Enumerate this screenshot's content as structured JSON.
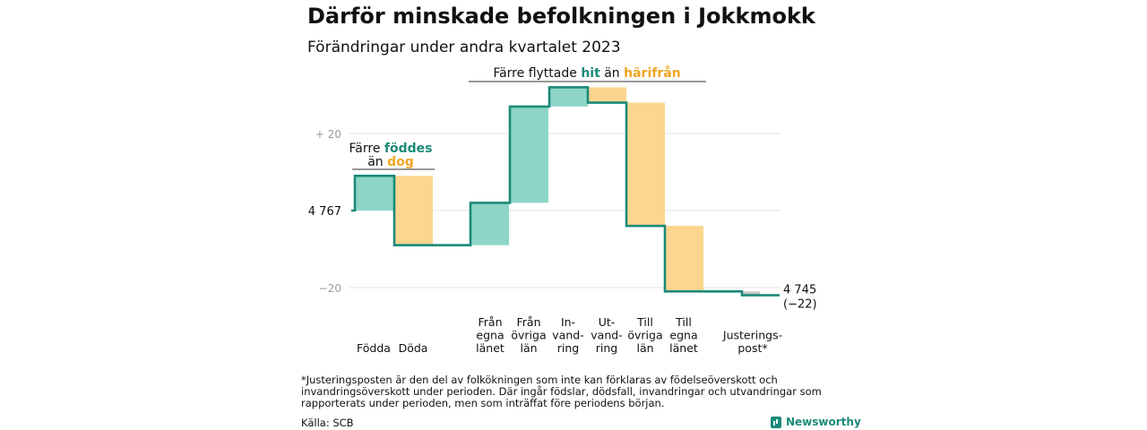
{
  "header": {
    "title": "Därför minskade befolkningen i Jokkmokk",
    "subtitle": "Förändringar under andra kvartalet 2023"
  },
  "chart_data": {
    "type": "waterfall",
    "start_value": 4767,
    "end_value": 4745,
    "end_label": "4 745",
    "end_change_label": "(−22)",
    "baseline_label": "4 767",
    "y_ticks": [
      {
        "value": 20,
        "label": "+  20"
      },
      {
        "value": -20,
        "label": "−20"
      }
    ],
    "ylim": [
      -28,
      40
    ],
    "grid": true,
    "steps": [
      {
        "key": "fodda",
        "label": [
          "Födda"
        ],
        "change": 9,
        "kind": "in"
      },
      {
        "key": "doda",
        "label": [
          "Döda"
        ],
        "change": -18,
        "kind": "out"
      },
      {
        "key": "fran_egna",
        "label": [
          "Från",
          "egna",
          "länet"
        ],
        "change": 11,
        "kind": "in"
      },
      {
        "key": "fran_ovriga",
        "label": [
          "Från",
          "övriga",
          "län"
        ],
        "change": 25,
        "kind": "in"
      },
      {
        "key": "invandring",
        "label": [
          "In-",
          "vand-",
          "ring"
        ],
        "change": 5,
        "kind": "in"
      },
      {
        "key": "utvandring",
        "label": [
          "Ut-",
          "vand-",
          "ring"
        ],
        "change": -4,
        "kind": "out"
      },
      {
        "key": "till_ovriga",
        "label": [
          "Till",
          "övriga",
          "län"
        ],
        "change": -32,
        "kind": "out"
      },
      {
        "key": "till_egna",
        "label": [
          "Till",
          "egna",
          "länet"
        ],
        "change": -17,
        "kind": "out"
      },
      {
        "key": "justering",
        "label": [
          "Justerings-",
          "post*"
        ],
        "change": -1,
        "kind": "adj"
      }
    ],
    "annotations": {
      "births": {
        "line1": "Färre",
        "line1_colored": "föddes",
        "line2": "än",
        "line2_colored": "dog"
      },
      "migration": {
        "text1": "Färre flyttade",
        "colored1": "hit",
        "text2": "än",
        "colored2": "härifrån"
      }
    },
    "colors": {
      "in_fill": "#8ed5c8",
      "out_fill": "#fcd58e",
      "adj_fill": "#c8c8c8",
      "line": "#1a8a78",
      "teal_text": "#1a8a78",
      "orange_text": "#efa521",
      "grid": "#e3e3e3"
    }
  },
  "footer": {
    "footnote": "*Justeringsposten är den del av folkökningen som inte kan förklaras av födelseöverskott och invandringsöverskott under perioden. Där ingår födslar, dödsfall, invandringar och utvandringar som rapporterats under perioden, men som inträffat före periodens början.",
    "source": "Källa: SCB",
    "brand": "Newsworthy"
  }
}
